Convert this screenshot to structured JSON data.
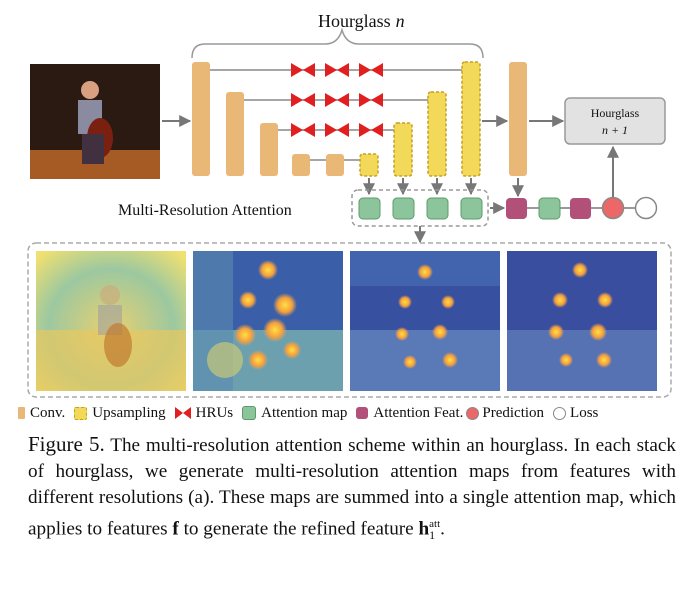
{
  "figure": {
    "hourglass_label_prefix": "Hourglass",
    "hourglass_label_var": "n",
    "next_hourglass_line1": "Hourglass",
    "next_hourglass_line2": "n + 1",
    "mra_label": "Multi-Resolution Attention"
  },
  "legend": {
    "conv": "Conv.",
    "upsampling": "Upsampling",
    "hrus": "HRUs",
    "attention_map": "Attention map",
    "attention_feat": "Attention Feat.",
    "prediction": "Prediction",
    "loss": "Loss"
  },
  "colors": {
    "conv": "#e9b877",
    "upsampling": "#f2d95a",
    "hru": "#e02020",
    "attention_map": "#8cc59b",
    "attention_feat": "#b3507a",
    "prediction": "#ec6868",
    "loss": "#ffffff",
    "next_hourglass": "#e2e2e2"
  },
  "caption": {
    "label": "Figure 5.",
    "text_part1": " The multi-resolution attention scheme within an hourglass.  In each stack of hourglass, we generate multi-resolution attention maps from features with different resolutions (a). These maps are summed into a single attention map, which applies to features ",
    "vec_f": "f",
    "text_part2": " to generate the refined feature ",
    "vec_h": "h",
    "h_sub": "1",
    "h_sup": "att",
    "text_end": "."
  }
}
